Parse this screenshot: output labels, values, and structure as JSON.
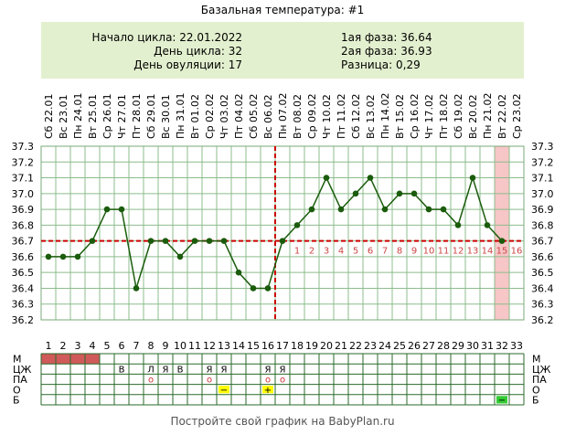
{
  "title": "Базальная температура: #1",
  "info": {
    "cycle_start": "Начало цикла: 22.01.2022",
    "cycle_day": "День цикла: 32",
    "ovulation_day": "День овуляции: 17",
    "phase1": "1ая фаза: 36.64",
    "phase2": "2ая фаза: 36.93",
    "difference": "Разница: 0,29"
  },
  "footer": "Постройте свой график на BabyPlan.ru",
  "colors": {
    "line": "#1a5c0c",
    "point": "#1a5c0c",
    "coverline": "#cc0000",
    "ovulation_line": "#cc0000",
    "grid": "#8cbc8c",
    "highlight": "#f7c6c6",
    "info_bg": "#e3f0cf",
    "menstruation": "#d05a5a",
    "test_yellow": "#ffff00",
    "test_green": "#33cc33",
    "phase2_numbers": "#cc4444"
  },
  "chart_data": {
    "type": "line",
    "title": "Базальная температура: #1",
    "dates": [
      "22.01",
      "23.01",
      "24.01",
      "25.01",
      "26.01",
      "27.01",
      "28.01",
      "29.01",
      "30.01",
      "31.01",
      "01.02",
      "02.02",
      "03.02",
      "04.02",
      "05.02",
      "06.02",
      "07.02",
      "08.02",
      "09.02",
      "10.02",
      "11.02",
      "12.02",
      "13.02",
      "14.02",
      "15.02",
      "16.02",
      "17.02",
      "18.02",
      "19.02",
      "20.02",
      "21.02",
      "22.02",
      "23.02"
    ],
    "weekdays": [
      "Сб",
      "Вс",
      "Пн",
      "Вт",
      "Ср",
      "Чт",
      "Пт",
      "Сб",
      "Вс",
      "Пн",
      "Вт",
      "Ср",
      "Чт",
      "Пт",
      "Сб",
      "Вс",
      "Пн",
      "Вт",
      "Ср",
      "Чт",
      "Пт",
      "Сб",
      "Вс",
      "Пн",
      "Вт",
      "Ср",
      "Чт",
      "Пт",
      "Сб",
      "Вс",
      "Пн",
      "Вт",
      "Ср"
    ],
    "days": [
      1,
      2,
      3,
      4,
      5,
      6,
      7,
      8,
      9,
      10,
      11,
      12,
      13,
      14,
      15,
      16,
      17,
      18,
      19,
      20,
      21,
      22,
      23,
      24,
      25,
      26,
      27,
      28,
      29,
      30,
      31,
      32,
      33
    ],
    "temperatures": [
      36.6,
      36.6,
      36.6,
      36.7,
      36.9,
      36.9,
      36.4,
      36.7,
      36.7,
      36.6,
      36.7,
      36.7,
      36.7,
      36.5,
      36.4,
      36.4,
      36.7,
      36.8,
      36.9,
      37.1,
      36.9,
      37.0,
      37.1,
      36.9,
      37.0,
      37.0,
      36.9,
      36.9,
      36.8,
      37.1,
      36.8,
      36.7,
      null
    ],
    "y_ticks": [
      "37.3",
      "37.2",
      "37.1",
      "37.0",
      "36.9",
      "36.8",
      "36.7",
      "36.6",
      "36.5",
      "36.4",
      "36.3",
      "36.2"
    ],
    "ylim": [
      36.2,
      37.3
    ],
    "coverline": 36.7,
    "ovulation_day": 17,
    "highlight_day": 32,
    "phase2_day_numbers": [
      "1",
      "2",
      "3",
      "4",
      "5",
      "6",
      "7",
      "8",
      "9",
      "10",
      "11",
      "12",
      "13",
      "14",
      "15",
      "16"
    ],
    "grid": true,
    "row_labels": [
      "М",
      "ЦЖ",
      "ПА",
      "О",
      "Б"
    ],
    "rows": {
      "M": [
        1,
        1,
        1,
        1,
        0,
        0,
        0,
        0,
        0,
        0,
        0,
        0,
        0,
        0,
        0,
        0,
        0,
        0,
        0,
        0,
        0,
        0,
        0,
        0,
        0,
        0,
        0,
        0,
        0,
        0,
        0,
        0,
        0
      ],
      "CZh": [
        "",
        "",
        "",
        "",
        "",
        "В",
        "",
        "Л",
        "Я",
        "В",
        "",
        "Я",
        "Я",
        "",
        "",
        "Я",
        "Я",
        "",
        "",
        "",
        "",
        "",
        "",
        "",
        "",
        "",
        "",
        "",
        "",
        "",
        "",
        "",
        ""
      ],
      "PA": [
        "",
        "",
        "",
        "",
        "",
        "",
        "",
        "о",
        "",
        "",
        "",
        "о",
        "",
        "",
        "",
        "о",
        "о",
        "",
        "",
        "",
        "",
        "",
        "",
        "",
        "",
        "",
        "",
        "",
        "",
        "",
        "",
        "",
        ""
      ],
      "O": [
        "",
        "",
        "",
        "",
        "",
        "",
        "",
        "",
        "",
        "",
        "",
        "",
        "−",
        "",
        "",
        "+",
        "",
        "",
        "",
        "",
        "",
        "",
        "",
        "",
        "",
        "",
        "",
        "",
        "",
        "",
        "",
        "",
        ""
      ],
      "B": [
        "",
        "",
        "",
        "",
        "",
        "",
        "",
        "",
        "",
        "",
        "",
        "",
        "",
        "",
        "",
        "",
        "",
        "",
        "",
        "",
        "",
        "",
        "",
        "",
        "",
        "",
        "",
        "",
        "",
        "",
        "",
        "−",
        ""
      ]
    },
    "row_colors": {
      "O": [
        "",
        "",
        "",
        "",
        "",
        "",
        "",
        "",
        "",
        "",
        "",
        "",
        "yellow",
        "",
        "",
        "yellow",
        "",
        "",
        "",
        "",
        "",
        "",
        "",
        "",
        "",
        "",
        "",
        "",
        "",
        "",
        "",
        "",
        ""
      ],
      "B": [
        "",
        "",
        "",
        "",
        "",
        "",
        "",
        "",
        "",
        "",
        "",
        "",
        "",
        "",
        "",
        "",
        "",
        "",
        "",
        "",
        "",
        "",
        "",
        "",
        "",
        "",
        "",
        "",
        "",
        "",
        "",
        "green",
        ""
      ]
    }
  }
}
